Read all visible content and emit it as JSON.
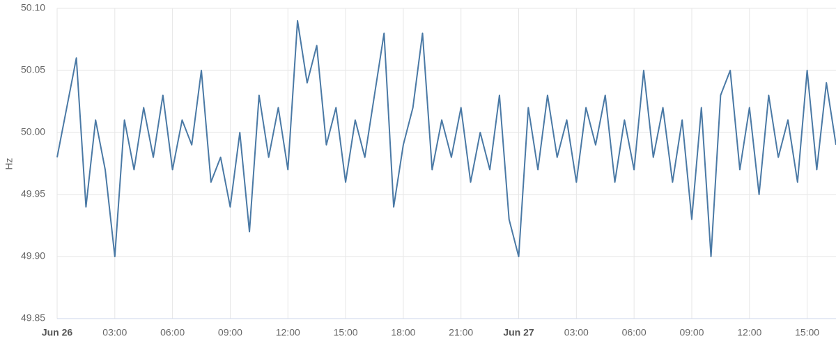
{
  "chart_data": {
    "type": "line",
    "y_label": "Hz",
    "x": [
      0,
      0.5,
      1,
      1.5,
      2,
      2.5,
      3,
      3.5,
      4,
      4.5,
      5,
      5.5,
      6,
      6.5,
      7,
      7.5,
      8,
      8.5,
      9,
      9.5,
      10,
      10.5,
      11,
      11.5,
      12,
      12.5,
      13,
      13.5,
      14,
      14.5,
      15,
      15.5,
      16,
      16.5,
      17,
      17.5,
      18,
      18.5,
      19,
      19.5,
      20,
      20.5,
      21,
      21.5,
      22,
      22.5,
      23,
      23.5,
      24,
      24.5,
      25,
      25.5,
      26,
      26.5,
      27,
      27.5,
      28,
      28.5,
      29,
      29.5,
      30,
      30.5,
      31,
      31.5,
      32,
      32.5,
      33,
      33.5,
      34,
      34.5,
      35,
      35.5,
      36,
      36.5,
      37,
      37.5,
      38,
      38.5,
      39,
      39.5,
      40,
      40.5
    ],
    "series": [
      {
        "color": "#4a79a5",
        "values": [
          49.98,
          50.02,
          50.06,
          49.94,
          50.01,
          49.97,
          49.9,
          50.01,
          49.97,
          50.02,
          49.98,
          50.03,
          49.97,
          50.01,
          49.99,
          50.05,
          49.96,
          49.98,
          49.94,
          50.0,
          49.92,
          50.03,
          49.98,
          50.02,
          49.97,
          50.09,
          50.04,
          50.07,
          49.99,
          50.02,
          49.96,
          50.01,
          49.98,
          50.03,
          50.08,
          49.94,
          49.99,
          50.02,
          50.08,
          49.97,
          50.01,
          49.98,
          50.02,
          49.96,
          50.0,
          49.97,
          50.03,
          49.93,
          49.9,
          50.02,
          49.97,
          50.03,
          49.98,
          50.01,
          49.96,
          50.02,
          49.99,
          50.03,
          49.96,
          50.01,
          49.97,
          50.05,
          49.98,
          50.02,
          49.96,
          50.01,
          49.93,
          50.02,
          49.9,
          50.03,
          50.05,
          49.97,
          50.02,
          49.95,
          50.03,
          49.98,
          50.01,
          49.96,
          50.05,
          49.97,
          50.04,
          49.99
        ]
      }
    ],
    "xlim": [
      0,
      40.5
    ],
    "xticks": [
      {
        "value": 0,
        "label": "Jun 26"
      },
      {
        "value": 3,
        "label": "03:00"
      },
      {
        "value": 6,
        "label": "06:00"
      },
      {
        "value": 9,
        "label": "09:00"
      },
      {
        "value": 12,
        "label": "12:00"
      },
      {
        "value": 15,
        "label": "15:00"
      },
      {
        "value": 18,
        "label": "18:00"
      },
      {
        "value": 21,
        "label": "21:00"
      },
      {
        "value": 24,
        "label": "Jun 27"
      },
      {
        "value": 27,
        "label": "03:00"
      },
      {
        "value": 30,
        "label": "06:00"
      },
      {
        "value": 33,
        "label": "09:00"
      },
      {
        "value": 36,
        "label": "12:00"
      },
      {
        "value": 39,
        "label": "15:00"
      }
    ],
    "ylim": [
      49.85,
      50.1
    ],
    "yticks": [
      {
        "value": 49.85,
        "label": "49.85"
      },
      {
        "value": 49.9,
        "label": "49.90"
      },
      {
        "value": 49.95,
        "label": "49.95"
      },
      {
        "value": 50,
        "label": "50.00"
      },
      {
        "value": 50.05,
        "label": "50.05"
      },
      {
        "value": 50.1,
        "label": "50.10"
      }
    ],
    "grid": true
  }
}
